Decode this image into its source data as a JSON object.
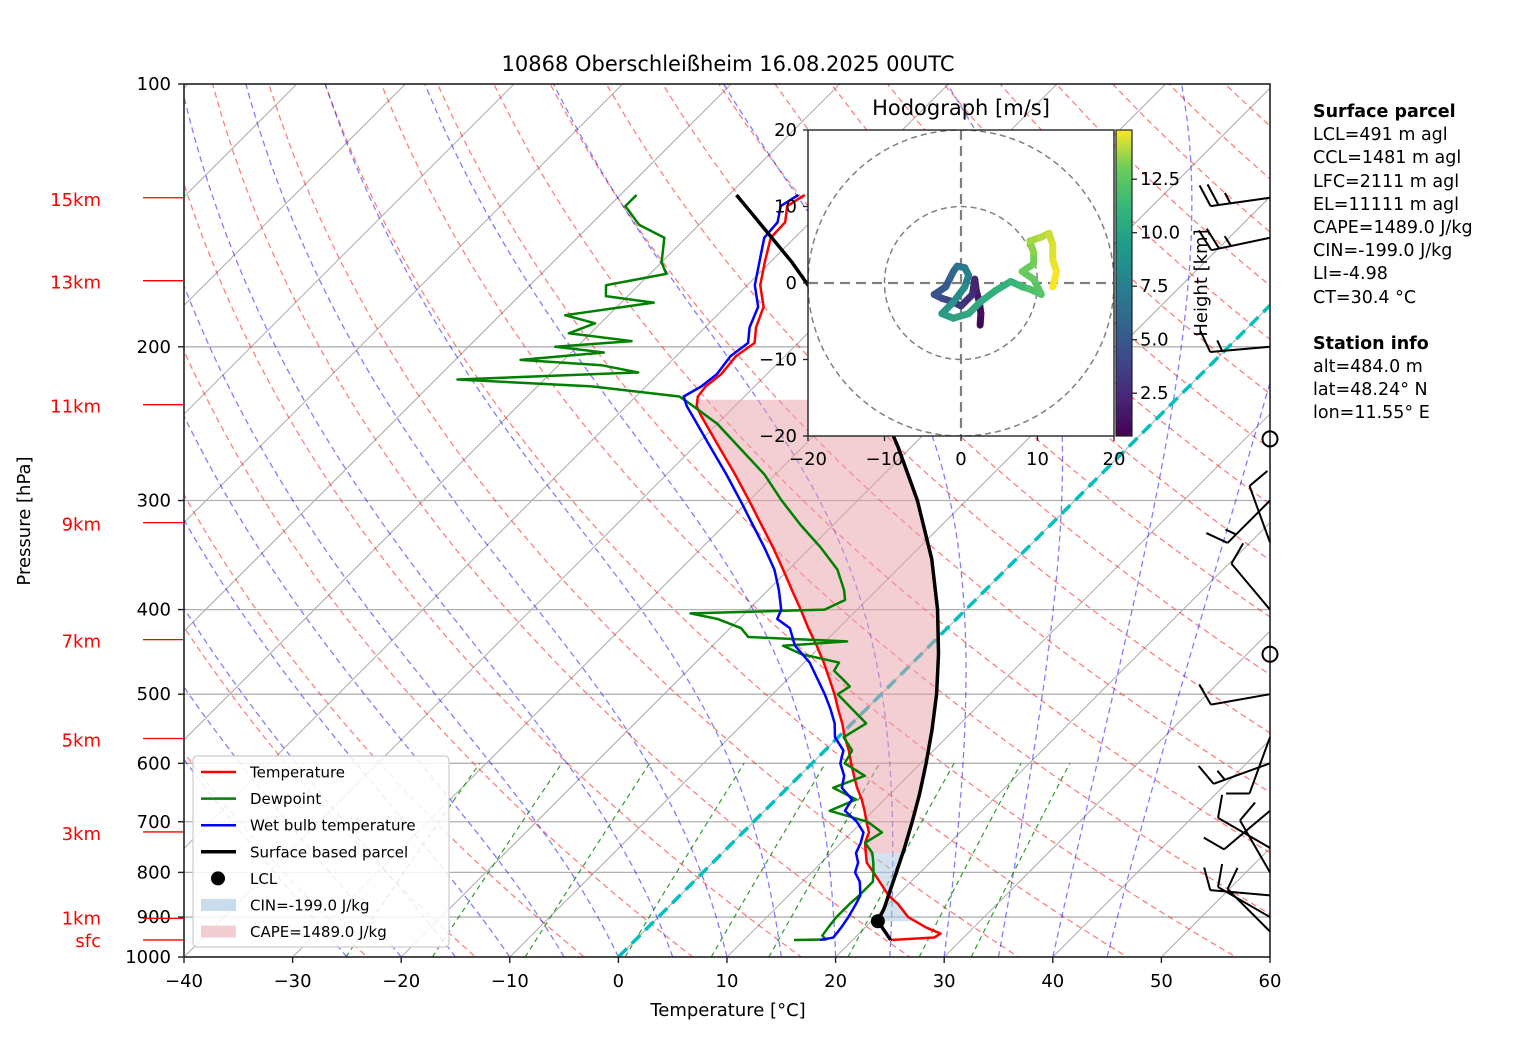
{
  "chart_data": {
    "type": "line",
    "subtype": "skew-T log-P diagram",
    "title": "10868 Oberschleißheim 16.08.2025 00UTC",
    "xlabel": "Temperature [°C]",
    "ylabel": "Pressure [hPa]",
    "xlim": [
      -40,
      60
    ],
    "ylim": [
      1000,
      100
    ],
    "x_ticks": [
      "−40",
      "−30",
      "−20",
      "−10",
      "0",
      "10",
      "20",
      "30",
      "40",
      "50",
      "60"
    ],
    "x_tick_values": [
      -40,
      -30,
      -20,
      -10,
      0,
      10,
      20,
      30,
      40,
      50,
      60
    ],
    "y_ticks": [
      "100",
      "200",
      "300",
      "400",
      "500",
      "600",
      "700",
      "800",
      "900",
      "1000"
    ],
    "y_tick_values": [
      100,
      200,
      300,
      400,
      500,
      600,
      700,
      800,
      900,
      1000
    ],
    "height_labels": [
      {
        "label": "15km",
        "p": 135
      },
      {
        "label": "13km",
        "p": 168
      },
      {
        "label": "11km",
        "p": 233
      },
      {
        "label": "9km",
        "p": 318
      },
      {
        "label": "7km",
        "p": 433
      },
      {
        "label": "5km",
        "p": 562
      },
      {
        "label": "3km",
        "p": 719
      },
      {
        "label": "1km",
        "p": 903
      },
      {
        "label": "sfc",
        "p": 956
      }
    ],
    "height_label_color": "#ff0000",
    "grid": true,
    "series": [
      {
        "name": "Temperature",
        "color": "#ff0000",
        "points": [
          [
            956,
            23.5
          ],
          [
            950,
            27.3
          ],
          [
            940,
            27.5
          ],
          [
            925,
            25.6
          ],
          [
            900,
            23.0
          ],
          [
            870,
            20.9
          ],
          [
            850,
            19.2
          ],
          [
            800,
            15.7
          ],
          [
            780,
            14.2
          ],
          [
            760,
            13.2
          ],
          [
            740,
            12.2
          ],
          [
            720,
            11.6
          ],
          [
            700,
            10.4
          ],
          [
            680,
            9.2
          ],
          [
            660,
            7.9
          ],
          [
            640,
            6.4
          ],
          [
            620,
            5.0
          ],
          [
            600,
            3.6
          ],
          [
            580,
            2.2
          ],
          [
            560,
            0.6
          ],
          [
            540,
            -0.9
          ],
          [
            520,
            -2.6
          ],
          [
            500,
            -4.3
          ],
          [
            480,
            -6.2
          ],
          [
            460,
            -8.2
          ],
          [
            440,
            -10.4
          ],
          [
            420,
            -12.8
          ],
          [
            400,
            -15.2
          ],
          [
            380,
            -17.8
          ],
          [
            360,
            -20.5
          ],
          [
            340,
            -23.4
          ],
          [
            320,
            -26.6
          ],
          [
            300,
            -30.0
          ],
          [
            280,
            -33.7
          ],
          [
            260,
            -37.8
          ],
          [
            240,
            -42.2
          ],
          [
            234,
            -43.5
          ],
          [
            228,
            -44.3
          ],
          [
            222,
            -44.5
          ],
          [
            215,
            -44.2
          ],
          [
            205,
            -44.5
          ],
          [
            198,
            -44.0
          ],
          [
            190,
            -45.3
          ],
          [
            180,
            -46.5
          ],
          [
            170,
            -48.8
          ],
          [
            160,
            -50.5
          ],
          [
            150,
            -52.2
          ],
          [
            144,
            -52.3
          ],
          [
            138,
            -53.6
          ],
          [
            134,
            -53.0
          ]
        ]
      },
      {
        "name": "Dewpoint",
        "color": "#008000",
        "points": [
          [
            956,
            14.6
          ],
          [
            955,
            17.5
          ],
          [
            945,
            16.8
          ],
          [
            925,
            16.6
          ],
          [
            900,
            16.4
          ],
          [
            870,
            16.4
          ],
          [
            850,
            16.5
          ],
          [
            820,
            16.5
          ],
          [
            800,
            15.7
          ],
          [
            780,
            14.8
          ],
          [
            760,
            13.8
          ],
          [
            740,
            12.2
          ],
          [
            720,
            12.8
          ],
          [
            700,
            10.5
          ],
          [
            680,
            6.0
          ],
          [
            660,
            7.4
          ],
          [
            640,
            4.2
          ],
          [
            620,
            6.0
          ],
          [
            600,
            3.0
          ],
          [
            580,
            2.5
          ],
          [
            560,
            0.5
          ],
          [
            540,
            1.3
          ],
          [
            520,
            -1.3
          ],
          [
            500,
            -4.0
          ],
          [
            490,
            -3.6
          ],
          [
            480,
            -5.0
          ],
          [
            470,
            -6.5
          ],
          [
            460,
            -6.8
          ],
          [
            450,
            -11.0
          ],
          [
            440,
            -13.5
          ],
          [
            435,
            -8.0
          ],
          [
            430,
            -17.5
          ],
          [
            420,
            -19.0
          ],
          [
            410,
            -22.0
          ],
          [
            404,
            -25.0
          ],
          [
            400,
            -13.0
          ],
          [
            390,
            -12.0
          ],
          [
            380,
            -13.0
          ],
          [
            360,
            -15.5
          ],
          [
            340,
            -19.0
          ],
          [
            320,
            -23.0
          ],
          [
            300,
            -27.0
          ],
          [
            280,
            -31.0
          ],
          [
            260,
            -36.0
          ],
          [
            245,
            -40.0
          ],
          [
            232,
            -44.5
          ],
          [
            228,
            -46.0
          ],
          [
            222,
            -55.0
          ],
          [
            218,
            -68.0
          ],
          [
            214,
            -52.0
          ],
          [
            210,
            -56.0
          ],
          [
            207,
            -64.0
          ],
          [
            203,
            -57.0
          ],
          [
            200,
            -62.0
          ],
          [
            197,
            -55.5
          ],
          [
            193,
            -62.0
          ],
          [
            188,
            -60.5
          ],
          [
            184,
            -64.0
          ],
          [
            178,
            -57.0
          ],
          [
            175,
            -62.0
          ],
          [
            170,
            -63.0
          ],
          [
            165,
            -58.5
          ],
          [
            160,
            -60.0
          ],
          [
            150,
            -62.0
          ],
          [
            145,
            -65.5
          ],
          [
            138,
            -68.5
          ],
          [
            134,
            -68.5
          ]
        ]
      },
      {
        "name": "Wet bulb temperature",
        "color": "#0000ff",
        "points": [
          [
            956,
            17.0
          ],
          [
            950,
            18.0
          ],
          [
            925,
            17.8
          ],
          [
            900,
            17.5
          ],
          [
            870,
            17.0
          ],
          [
            850,
            16.6
          ],
          [
            820,
            15.3
          ],
          [
            800,
            14.0
          ],
          [
            780,
            13.4
          ],
          [
            760,
            12.3
          ],
          [
            740,
            11.8
          ],
          [
            720,
            11.1
          ],
          [
            700,
            9.5
          ],
          [
            680,
            7.4
          ],
          [
            660,
            7.0
          ],
          [
            640,
            5.0
          ],
          [
            620,
            4.1
          ],
          [
            600,
            2.6
          ],
          [
            580,
            1.7
          ],
          [
            560,
            -0.3
          ],
          [
            540,
            -1.6
          ],
          [
            520,
            -3.3
          ],
          [
            500,
            -5.2
          ],
          [
            480,
            -7.3
          ],
          [
            460,
            -9.5
          ],
          [
            440,
            -12.4
          ],
          [
            420,
            -14.5
          ],
          [
            410,
            -16.5
          ],
          [
            400,
            -17.0
          ],
          [
            380,
            -19.0
          ],
          [
            360,
            -21.3
          ],
          [
            340,
            -24.2
          ],
          [
            320,
            -27.4
          ],
          [
            300,
            -30.8
          ],
          [
            280,
            -34.5
          ],
          [
            260,
            -38.6
          ],
          [
            240,
            -43.0
          ],
          [
            234,
            -44.4
          ],
          [
            228,
            -45.6
          ],
          [
            222,
            -44.9
          ],
          [
            215,
            -44.6
          ],
          [
            205,
            -45.0
          ],
          [
            198,
            -44.6
          ],
          [
            190,
            -45.9
          ],
          [
            180,
            -47.0
          ],
          [
            170,
            -49.3
          ],
          [
            160,
            -51.0
          ],
          [
            150,
            -52.8
          ],
          [
            144,
            -53.0
          ],
          [
            138,
            -54.2
          ],
          [
            134,
            -53.6
          ]
        ]
      },
      {
        "name": "Surface based parcel",
        "color": "#000000",
        "points": [
          [
            956,
            23.5
          ],
          [
            910,
            20.6
          ],
          [
            880,
            20.0
          ],
          [
            850,
            19.2
          ],
          [
            800,
            17.8
          ],
          [
            750,
            16.3
          ],
          [
            700,
            14.6
          ],
          [
            650,
            12.7
          ],
          [
            600,
            10.5
          ],
          [
            550,
            8.0
          ],
          [
            500,
            5.1
          ],
          [
            450,
            1.6
          ],
          [
            400,
            -2.6
          ],
          [
            350,
            -7.8
          ],
          [
            300,
            -14.5
          ],
          [
            260,
            -21.3
          ],
          [
            240,
            -25.3
          ],
          [
            220,
            -29.8
          ],
          [
            200,
            -35.0
          ],
          [
            180,
            -41.0
          ],
          [
            160,
            -48.0
          ],
          [
            140,
            -56.5
          ],
          [
            134,
            -59.3
          ]
        ]
      }
    ],
    "lcl": {
      "label": "LCL",
      "p": 910,
      "T": 20.6,
      "color": "#000000"
    },
    "fills": [
      {
        "name": "CIN=-199.0 J/kg",
        "color": "#a6c8e0",
        "alpha": 0.5,
        "p_range": [
          910,
          760
        ]
      },
      {
        "name": "CAPE=1489.0 J/kg",
        "color": "#e8a0a8",
        "alpha": 0.5,
        "p_range": [
          760,
          230
        ]
      }
    ],
    "zero_isotherm": {
      "T": 0,
      "color": "#00bfbf",
      "style": "dashed"
    },
    "legend": {
      "placement": "lower-left",
      "entries": [
        {
          "label": "Temperature",
          "kind": "line",
          "color": "#ff0000"
        },
        {
          "label": "Dewpoint",
          "kind": "line",
          "color": "#008000"
        },
        {
          "label": "Wet bulb temperature",
          "kind": "line",
          "color": "#0000ff"
        },
        {
          "label": "Surface based parcel",
          "kind": "line",
          "color": "#000000"
        },
        {
          "label": "LCL",
          "kind": "marker",
          "color": "#000000"
        },
        {
          "label": "CIN=-199.0 J/kg",
          "kind": "patch",
          "color": "#c9dceb"
        },
        {
          "label": "CAPE=1489.0 J/kg",
          "kind": "patch",
          "color": "#f2cdd1"
        }
      ]
    },
    "wind_barbs": [
      {
        "p": 135,
        "dir": 262,
        "speed_kt": 25
      },
      {
        "p": 150,
        "dir": 258,
        "speed_kt": 25
      },
      {
        "p": 200,
        "dir": 265,
        "speed_kt": 15
      },
      {
        "p": 255,
        "dir": 0,
        "speed_kt": 0
      },
      {
        "p": 300,
        "dir": 225,
        "speed_kt": 15
      },
      {
        "p": 335,
        "dir": 340,
        "speed_kt": 10
      },
      {
        "p": 400,
        "dir": 320,
        "speed_kt": 10
      },
      {
        "p": 450,
        "dir": 0,
        "speed_kt": 0
      },
      {
        "p": 500,
        "dir": 260,
        "speed_kt": 10
      },
      {
        "p": 560,
        "dir": 200,
        "speed_kt": 10
      },
      {
        "p": 600,
        "dir": 250,
        "speed_kt": 15
      },
      {
        "p": 680,
        "dir": 230,
        "speed_kt": 10
      },
      {
        "p": 750,
        "dir": 300,
        "speed_kt": 10
      },
      {
        "p": 800,
        "dir": 330,
        "speed_kt": 10
      },
      {
        "p": 850,
        "dir": 275,
        "speed_kt": 10
      },
      {
        "p": 900,
        "dir": 300,
        "speed_kt": 10
      },
      {
        "p": 935,
        "dir": 315,
        "speed_kt": 10
      }
    ],
    "hodograph": {
      "title": "Hodograph [m/s]",
      "xlim": [
        -20,
        20
      ],
      "ylim": [
        -20,
        20
      ],
      "x_ticks": [
        "−20",
        "−10",
        "0",
        "10",
        "20"
      ],
      "y_ticks": [
        "20",
        "10",
        "0",
        "−10",
        "−20"
      ],
      "rings": [
        10,
        20
      ],
      "colorbar": {
        "label": "Height [km]",
        "min": 0.5,
        "max": 14.8,
        "ticks": [
          "2.5",
          "5.0",
          "7.5",
          "10.0",
          "12.5"
        ],
        "tick_values": [
          2.5,
          5.0,
          7.5,
          10.0,
          12.5
        ],
        "cmap": "viridis"
      },
      "points": [
        [
          2.5,
          -5.5,
          0.5
        ],
        [
          2.6,
          -4.0,
          1.0
        ],
        [
          2.4,
          -2.5,
          1.5
        ],
        [
          2.0,
          -1.0,
          2.0
        ],
        [
          1.8,
          0.5,
          2.3
        ],
        [
          1.5,
          -1.5,
          2.6
        ],
        [
          0.0,
          -3.0,
          3.0
        ],
        [
          -1.2,
          -2.4,
          3.5
        ],
        [
          -2.5,
          -2.0,
          4.0
        ],
        [
          -3.5,
          -1.5,
          4.5
        ],
        [
          -2.0,
          -0.5,
          5.0
        ],
        [
          -1.5,
          0.5,
          5.5
        ],
        [
          -1.0,
          1.5,
          6.0
        ],
        [
          -0.5,
          2.2,
          6.5
        ],
        [
          0.5,
          2.0,
          7.0
        ],
        [
          1.0,
          1.0,
          7.5
        ],
        [
          0.5,
          -0.5,
          8.0
        ],
        [
          -1.0,
          -2.5,
          8.5
        ],
        [
          -2.5,
          -4.0,
          9.0
        ],
        [
          -1.0,
          -4.6,
          9.5
        ],
        [
          1.0,
          -4.0,
          10.0
        ],
        [
          2.5,
          -2.5,
          10.3
        ],
        [
          4.5,
          -1.0,
          10.6
        ],
        [
          6.5,
          0.2,
          11.0
        ],
        [
          8.0,
          -0.5,
          11.5
        ],
        [
          9.0,
          -0.8,
          11.8
        ],
        [
          10.5,
          -1.5,
          12.2
        ],
        [
          9.5,
          0.5,
          12.5
        ],
        [
          8.0,
          1.5,
          12.8
        ],
        [
          9.5,
          2.5,
          13.0
        ],
        [
          9.5,
          4.0,
          13.3
        ],
        [
          9.0,
          5.5,
          13.6
        ],
        [
          10.5,
          6.0,
          13.9
        ],
        [
          11.5,
          6.5,
          14.1
        ],
        [
          12.0,
          5.0,
          14.3
        ],
        [
          12.0,
          3.0,
          14.5
        ],
        [
          12.5,
          1.5,
          14.6
        ],
        [
          12.0,
          -0.5,
          14.8
        ]
      ]
    }
  },
  "info": {
    "surface_parcel": {
      "heading": "Surface parcel",
      "lines": [
        "LCL=491 m agl",
        "CCL=1481 m agl",
        "LFC=2111 m agl",
        "EL=11111 m agl",
        "CAPE=1489.0 J/kg",
        "CIN=-199.0 J/kg",
        "LI=-4.98",
        "CT=30.4 °C"
      ]
    },
    "station": {
      "heading": "Station info",
      "lines": [
        "alt=484.0 m",
        "lat=48.24° N",
        "lon=11.55° E"
      ]
    }
  }
}
